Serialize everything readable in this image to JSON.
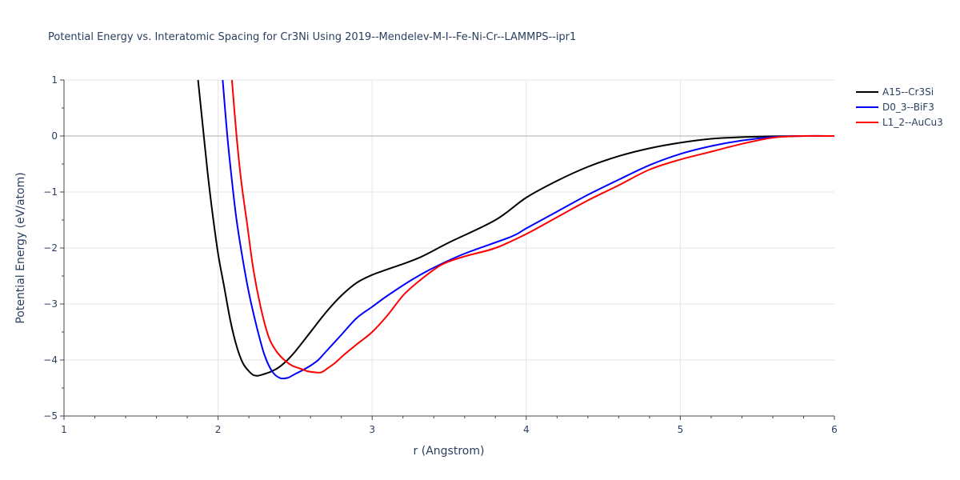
{
  "chart_data": {
    "type": "line",
    "title": "Potential Energy vs. Interatomic Spacing for Cr3Ni Using 2019--Mendelev-M-I--Fe-Ni-Cr--LAMMPS--ipr1",
    "xlabel": "r (Angstrom)",
    "ylabel": "Potential Energy (eV/atom)",
    "xlim": [
      1,
      6
    ],
    "ylim": [
      -5,
      1
    ],
    "x_ticks": [
      1,
      2,
      3,
      4,
      5,
      6
    ],
    "x_tick_labels": [
      "1",
      "2",
      "3",
      "4",
      "5",
      "6"
    ],
    "y_ticks": [
      -5,
      -4,
      -3,
      -2,
      -1,
      0,
      1
    ],
    "y_tick_labels": [
      "−5",
      "−4",
      "−3",
      "−2",
      "−1",
      "0",
      "1"
    ],
    "grid": true,
    "legend_position": "top-right",
    "series": [
      {
        "name": "A15--Cr3Si",
        "color": "#000000",
        "x": [
          1.87,
          1.9,
          1.93,
          1.96,
          2.0,
          2.04,
          2.08,
          2.12,
          2.16,
          2.2,
          2.23,
          2.26,
          2.3,
          2.35,
          2.4,
          2.45,
          2.5,
          2.6,
          2.7,
          2.8,
          2.9,
          3.0,
          3.1,
          3.3,
          3.5,
          3.8,
          4.0,
          4.2,
          4.4,
          4.6,
          4.8,
          5.0,
          5.2,
          5.4,
          5.6,
          5.8,
          6.0
        ],
        "y": [
          1.0,
          0.2,
          -0.6,
          -1.3,
          -2.1,
          -2.7,
          -3.3,
          -3.75,
          -4.05,
          -4.2,
          -4.27,
          -4.28,
          -4.25,
          -4.2,
          -4.12,
          -4.0,
          -3.85,
          -3.5,
          -3.15,
          -2.85,
          -2.62,
          -2.48,
          -2.38,
          -2.18,
          -1.9,
          -1.5,
          -1.1,
          -0.8,
          -0.55,
          -0.36,
          -0.22,
          -0.12,
          -0.05,
          -0.02,
          -0.005,
          0.0,
          0.0
        ]
      },
      {
        "name": "D0_3--BiF3",
        "color": "#0000ff",
        "x": [
          2.03,
          2.06,
          2.09,
          2.12,
          2.16,
          2.2,
          2.25,
          2.3,
          2.35,
          2.4,
          2.45,
          2.5,
          2.55,
          2.6,
          2.65,
          2.7,
          2.8,
          2.9,
          3.0,
          3.1,
          3.25,
          3.4,
          3.6,
          3.9,
          4.0,
          4.2,
          4.4,
          4.6,
          4.8,
          5.0,
          5.2,
          5.4,
          5.6,
          5.8,
          6.0
        ],
        "y": [
          1.0,
          0.0,
          -0.8,
          -1.5,
          -2.2,
          -2.8,
          -3.4,
          -3.9,
          -4.2,
          -4.32,
          -4.32,
          -4.25,
          -4.18,
          -4.1,
          -4.0,
          -3.85,
          -3.55,
          -3.25,
          -3.05,
          -2.85,
          -2.58,
          -2.35,
          -2.1,
          -1.8,
          -1.65,
          -1.35,
          -1.05,
          -0.78,
          -0.52,
          -0.32,
          -0.18,
          -0.08,
          -0.02,
          0.0,
          0.0
        ]
      },
      {
        "name": "L1_2--AuCu3",
        "color": "#ff0000",
        "x": [
          2.09,
          2.12,
          2.15,
          2.19,
          2.23,
          2.28,
          2.33,
          2.38,
          2.43,
          2.48,
          2.53,
          2.58,
          2.63,
          2.67,
          2.71,
          2.76,
          2.82,
          2.9,
          3.0,
          3.1,
          3.2,
          3.3,
          3.45,
          3.6,
          3.8,
          4.0,
          4.2,
          4.4,
          4.6,
          4.8,
          5.0,
          5.2,
          5.4,
          5.6,
          5.8,
          6.0
        ],
        "y": [
          1.0,
          0.0,
          -0.8,
          -1.6,
          -2.4,
          -3.1,
          -3.6,
          -3.85,
          -4.0,
          -4.1,
          -4.15,
          -4.2,
          -4.22,
          -4.22,
          -4.15,
          -4.05,
          -3.9,
          -3.72,
          -3.5,
          -3.2,
          -2.85,
          -2.6,
          -2.3,
          -2.15,
          -2.0,
          -1.75,
          -1.45,
          -1.15,
          -0.88,
          -0.6,
          -0.42,
          -0.28,
          -0.14,
          -0.03,
          0.0,
          0.0
        ]
      }
    ]
  }
}
